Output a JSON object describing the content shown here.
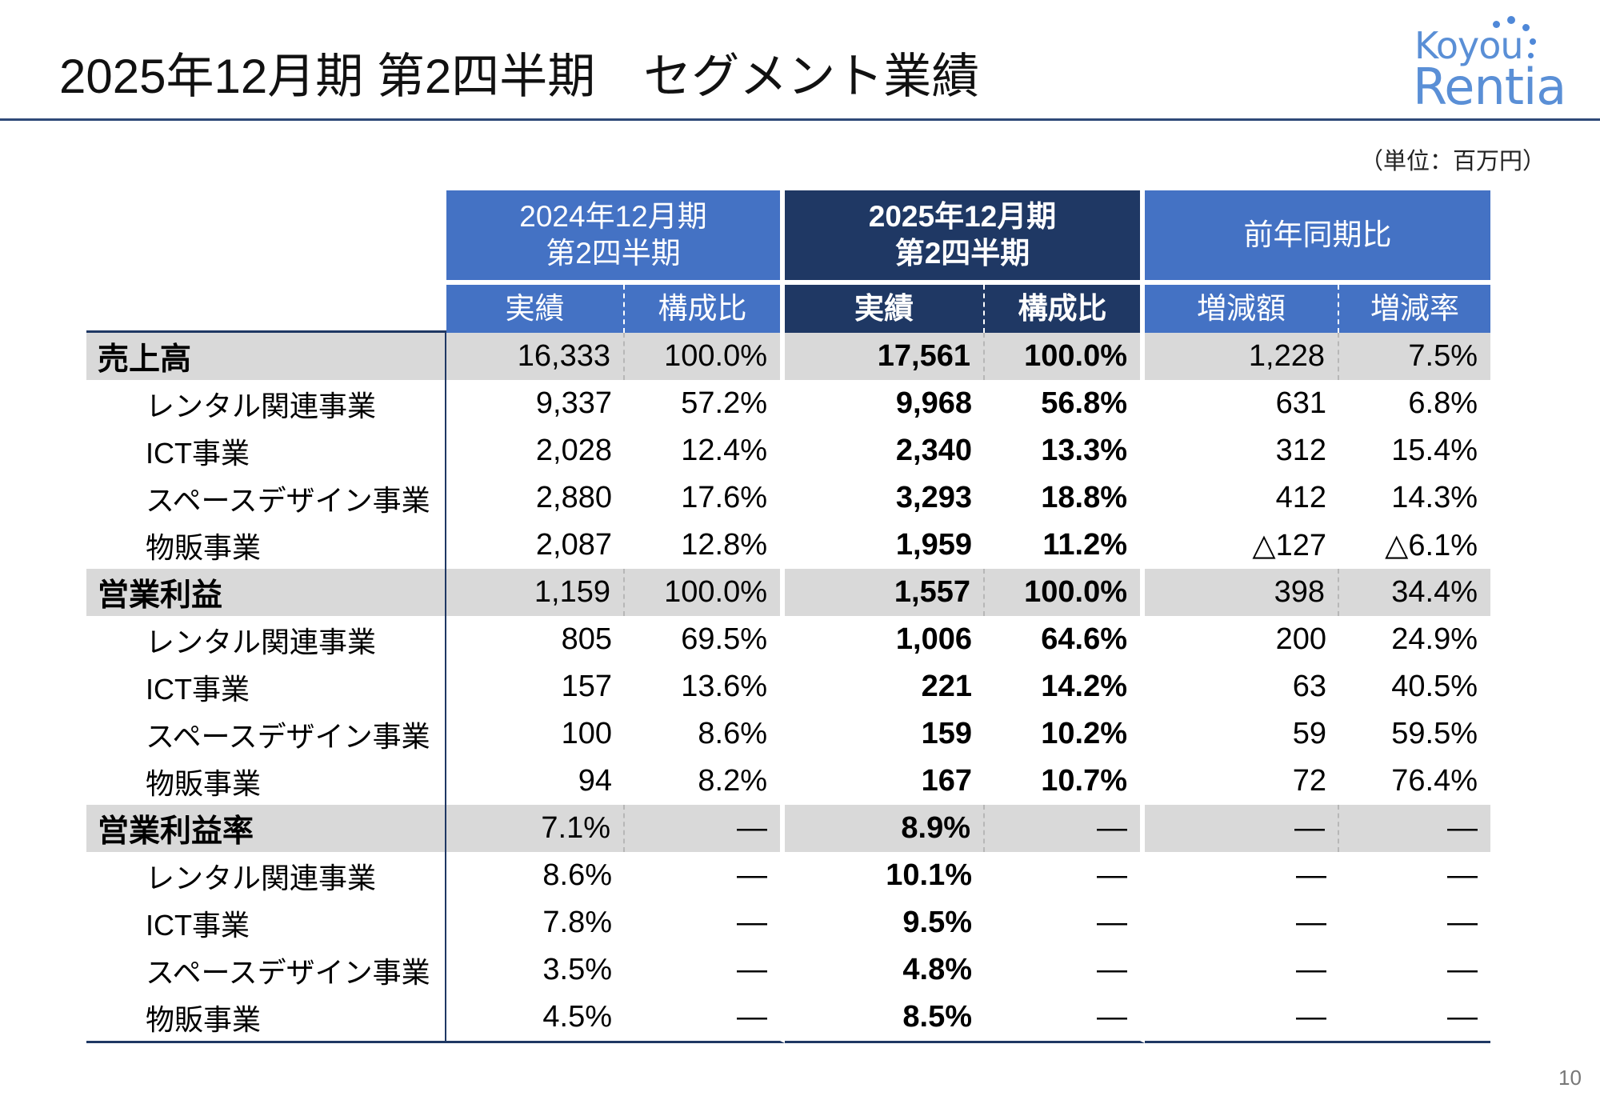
{
  "title": "2025年12月期 第2四半期　セグメント業績",
  "logo": {
    "top": "Koyou",
    "bottom": "Rentia"
  },
  "unit": "（単位：百万円）",
  "page_number": "10",
  "headers": {
    "prev_period": [
      "2024年12月期",
      "第2四半期"
    ],
    "curr_period": [
      "2025年12月期",
      "第2四半期"
    ],
    "yoy": "前年同期比",
    "actual": "実績",
    "ratio": "構成比",
    "change_amount": "増減額",
    "change_rate": "増減率"
  },
  "rows": [
    {
      "label": "売上高",
      "prev_actual": "16,333",
      "prev_ratio": "100.0%",
      "curr_actual": "17,561",
      "curr_ratio": "100.0%",
      "change": "1,228",
      "rate": "7.5%"
    },
    {
      "label": "レンタル関連事業",
      "prev_actual": "9,337",
      "prev_ratio": "57.2%",
      "curr_actual": "9,968",
      "curr_ratio": "56.8%",
      "change": "631",
      "rate": "6.8%"
    },
    {
      "label": "ICT事業",
      "prev_actual": "2,028",
      "prev_ratio": "12.4%",
      "curr_actual": "2,340",
      "curr_ratio": "13.3%",
      "change": "312",
      "rate": "15.4%"
    },
    {
      "label": "スペースデザイン事業",
      "prev_actual": "2,880",
      "prev_ratio": "17.6%",
      "curr_actual": "3,293",
      "curr_ratio": "18.8%",
      "change": "412",
      "rate": "14.3%"
    },
    {
      "label": "物販事業",
      "prev_actual": "2,087",
      "prev_ratio": "12.8%",
      "curr_actual": "1,959",
      "curr_ratio": "11.2%",
      "change": "△127",
      "rate": "△6.1%"
    },
    {
      "label": "営業利益",
      "prev_actual": "1,159",
      "prev_ratio": "100.0%",
      "curr_actual": "1,557",
      "curr_ratio": "100.0%",
      "change": "398",
      "rate": "34.4%"
    },
    {
      "label": "レンタル関連事業",
      "prev_actual": "805",
      "prev_ratio": "69.5%",
      "curr_actual": "1,006",
      "curr_ratio": "64.6%",
      "change": "200",
      "rate": "24.9%"
    },
    {
      "label": "ICT事業",
      "prev_actual": "157",
      "prev_ratio": "13.6%",
      "curr_actual": "221",
      "curr_ratio": "14.2%",
      "change": "63",
      "rate": "40.5%"
    },
    {
      "label": "スペースデザイン事業",
      "prev_actual": "100",
      "prev_ratio": "8.6%",
      "curr_actual": "159",
      "curr_ratio": "10.2%",
      "change": "59",
      "rate": "59.5%"
    },
    {
      "label": "物販事業",
      "prev_actual": "94",
      "prev_ratio": "8.2%",
      "curr_actual": "167",
      "curr_ratio": "10.7%",
      "change": "72",
      "rate": "76.4%"
    },
    {
      "label": "営業利益率",
      "prev_actual": "7.1%",
      "prev_ratio": "―",
      "curr_actual": "8.9%",
      "curr_ratio": "―",
      "change": "―",
      "rate": "―"
    },
    {
      "label": "レンタル関連事業",
      "prev_actual": "8.6%",
      "prev_ratio": "―",
      "curr_actual": "10.1%",
      "curr_ratio": "―",
      "change": "―",
      "rate": "―"
    },
    {
      "label": "ICT事業",
      "prev_actual": "7.8%",
      "prev_ratio": "―",
      "curr_actual": "9.5%",
      "curr_ratio": "―",
      "change": "―",
      "rate": "―"
    },
    {
      "label": "スペースデザイン事業",
      "prev_actual": "3.5%",
      "prev_ratio": "―",
      "curr_actual": "4.8%",
      "curr_ratio": "―",
      "change": "―",
      "rate": "―"
    },
    {
      "label": "物販事業",
      "prev_actual": "4.5%",
      "prev_ratio": "―",
      "curr_actual": "8.5%",
      "curr_ratio": "―",
      "change": "―",
      "rate": "―"
    }
  ]
}
